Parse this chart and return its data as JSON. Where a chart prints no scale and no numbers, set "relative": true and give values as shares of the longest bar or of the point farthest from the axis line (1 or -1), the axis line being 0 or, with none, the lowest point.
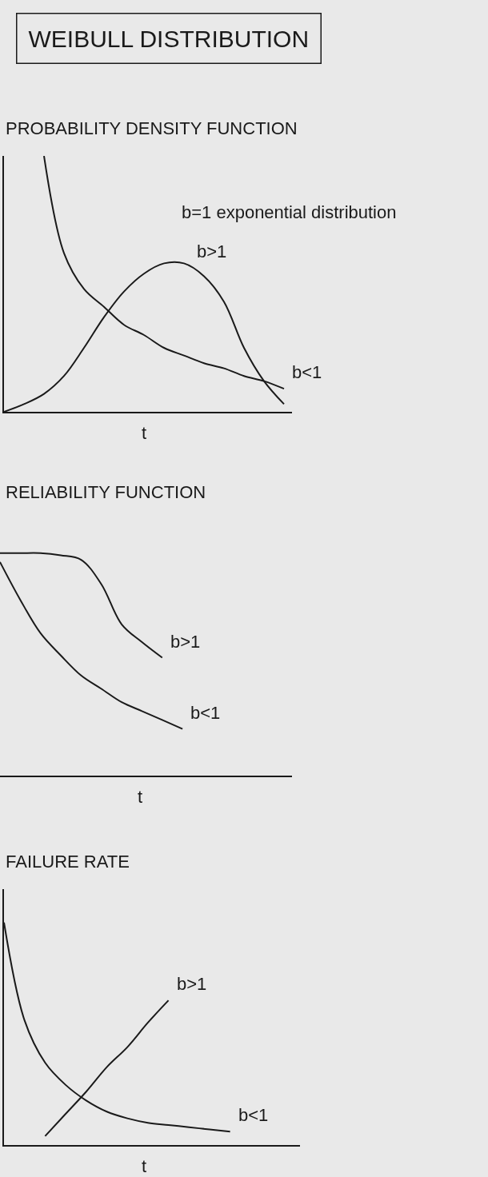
{
  "chart_data": [
    {
      "type": "line",
      "title": "WEIBULL DISTRIBUTION",
      "subtitle": "PROBABILITY DENSITY FUNCTION",
      "xlabel": "t",
      "relative": true,
      "grid": false,
      "line_style": "solid",
      "categories": [
        null,
        null,
        null,
        null,
        null,
        null,
        null,
        null,
        null,
        null,
        null,
        null,
        null,
        null,
        null
      ],
      "annotations": [
        "b=1 exponential distribution"
      ],
      "series": [
        {
          "name": "b<1",
          "color": "#1a1a1a",
          "values": [
            null,
            null,
            1.0,
            0.62,
            0.48,
            0.41,
            0.34,
            0.3,
            0.25,
            0.22,
            0.19,
            0.17,
            0.14,
            0.12,
            0.09
          ]
        },
        {
          "name": "b>1",
          "color": "#1a1a1a",
          "values": [
            0,
            0.03,
            0.07,
            0.14,
            0.25,
            0.37,
            0.47,
            0.54,
            0.58,
            0.58,
            0.53,
            0.43,
            0.25,
            0.12,
            0.03
          ]
        }
      ]
    },
    {
      "type": "line",
      "subtitle": "RELIABILITY FUNCTION",
      "xlabel": "t",
      "relative": true,
      "grid": false,
      "line_style": "solid",
      "categories": [
        null,
        null,
        null,
        null,
        null,
        null,
        null,
        null,
        null,
        null,
        null,
        null,
        null,
        null,
        null
      ],
      "series": [
        {
          "name": "b>1",
          "color": "#1a1a1a",
          "values": [
            1.0,
            1.0,
            1.0,
            0.99,
            0.97,
            0.86,
            0.68,
            0.6,
            0.53,
            null,
            null,
            null,
            null,
            null,
            null
          ]
        },
        {
          "name": "b<1",
          "color": "#1a1a1a",
          "values": [
            0.96,
            0.79,
            0.64,
            0.54,
            0.45,
            0.39,
            0.33,
            0.29,
            0.25,
            0.21,
            null,
            null,
            null,
            null,
            null
          ]
        }
      ]
    },
    {
      "type": "line",
      "subtitle": "FAILURE RATE",
      "xlabel": "t",
      "relative": true,
      "grid": false,
      "line_style": "solid",
      "categories": [
        null,
        null,
        null,
        null,
        null,
        null,
        null,
        null,
        null,
        null,
        null,
        null,
        null,
        null,
        null
      ],
      "series": [
        {
          "name": "b>1",
          "color": "#1a1a1a",
          "values": [
            null,
            null,
            0.04,
            0.14,
            0.24,
            0.35,
            0.44,
            0.55,
            0.65,
            null,
            null,
            null,
            null,
            null,
            null
          ]
        },
        {
          "name": "b<1",
          "color": "#1a1a1a",
          "values": [
            1.0,
            0.56,
            0.37,
            0.27,
            0.2,
            0.15,
            0.12,
            0.1,
            0.09,
            0.08,
            0.07,
            0.06,
            null,
            null,
            null
          ]
        }
      ]
    }
  ]
}
